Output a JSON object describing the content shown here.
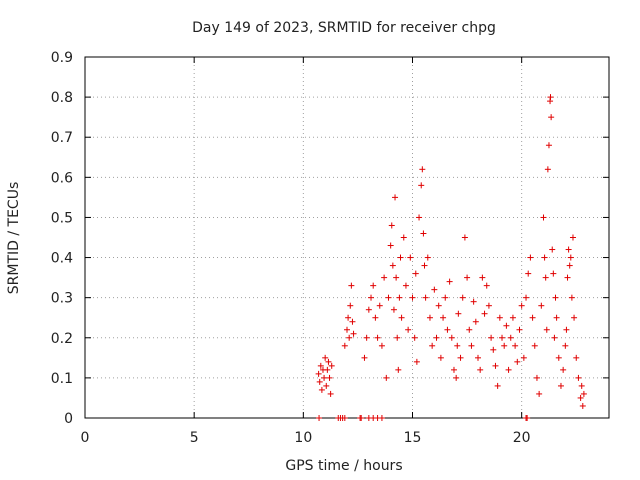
{
  "chart_data": {
    "type": "scatter",
    "title": "Day 149 of 2023, SRMTID for receiver chpg",
    "xlabel": "GPS time / hours",
    "ylabel": "SRMTID / TECUs",
    "xlim": [
      0,
      24
    ],
    "ylim": [
      0,
      0.9
    ],
    "xticks": [
      0,
      5,
      10,
      15,
      20
    ],
    "yticks": [
      0,
      0.1,
      0.2,
      0.3,
      0.4,
      0.5,
      0.6,
      0.7,
      0.8,
      0.9
    ],
    "xtick_labels": [
      "0",
      "5",
      "10",
      "15",
      "20"
    ],
    "ytick_labels": [
      "0",
      "0.1",
      "0.2",
      "0.3",
      "0.4",
      "0.5",
      "0.6",
      "0.7",
      "0.8",
      "0.9"
    ],
    "grid": true,
    "marker": "+",
    "color": "#e00000",
    "series": [
      {
        "name": "SRMTID",
        "points": [
          [
            10.7,
            0.11
          ],
          [
            10.75,
            0.09
          ],
          [
            10.8,
            0.13
          ],
          [
            10.85,
            0.07
          ],
          [
            10.9,
            0.12
          ],
          [
            10.95,
            0.1
          ],
          [
            11.0,
            0.15
          ],
          [
            11.05,
            0.08
          ],
          [
            11.1,
            0.12
          ],
          [
            11.15,
            0.14
          ],
          [
            11.2,
            0.1
          ],
          [
            11.25,
            0.06
          ],
          [
            11.3,
            0.13
          ],
          [
            11.9,
            0.18
          ],
          [
            12.0,
            0.22
          ],
          [
            12.05,
            0.25
          ],
          [
            12.1,
            0.2
          ],
          [
            12.15,
            0.28
          ],
          [
            12.2,
            0.33
          ],
          [
            12.25,
            0.24
          ],
          [
            12.3,
            0.21
          ],
          [
            12.8,
            0.15
          ],
          [
            12.9,
            0.2
          ],
          [
            13.0,
            0.27
          ],
          [
            13.1,
            0.3
          ],
          [
            13.2,
            0.33
          ],
          [
            13.3,
            0.25
          ],
          [
            13.4,
            0.2
          ],
          [
            13.5,
            0.28
          ],
          [
            13.6,
            0.18
          ],
          [
            13.7,
            0.35
          ],
          [
            13.8,
            0.1
          ],
          [
            13.9,
            0.3
          ],
          [
            14.0,
            0.43
          ],
          [
            14.05,
            0.48
          ],
          [
            14.1,
            0.38
          ],
          [
            14.15,
            0.27
          ],
          [
            14.2,
            0.55
          ],
          [
            14.25,
            0.35
          ],
          [
            14.3,
            0.2
          ],
          [
            14.35,
            0.12
          ],
          [
            14.4,
            0.3
          ],
          [
            14.45,
            0.4
          ],
          [
            14.5,
            0.25
          ],
          [
            14.6,
            0.45
          ],
          [
            14.7,
            0.33
          ],
          [
            14.8,
            0.22
          ],
          [
            14.9,
            0.4
          ],
          [
            15.0,
            0.3
          ],
          [
            15.1,
            0.2
          ],
          [
            15.15,
            0.36
          ],
          [
            15.2,
            0.14
          ],
          [
            15.3,
            0.5
          ],
          [
            15.4,
            0.58
          ],
          [
            15.45,
            0.62
          ],
          [
            15.5,
            0.46
          ],
          [
            15.55,
            0.38
          ],
          [
            15.6,
            0.3
          ],
          [
            15.7,
            0.4
          ],
          [
            15.8,
            0.25
          ],
          [
            15.9,
            0.18
          ],
          [
            16.0,
            0.32
          ],
          [
            16.1,
            0.2
          ],
          [
            16.2,
            0.28
          ],
          [
            16.3,
            0.15
          ],
          [
            16.4,
            0.25
          ],
          [
            16.5,
            0.3
          ],
          [
            16.6,
            0.22
          ],
          [
            16.7,
            0.34
          ],
          [
            16.8,
            0.2
          ],
          [
            16.9,
            0.12
          ],
          [
            17.0,
            0.1
          ],
          [
            17.05,
            0.18
          ],
          [
            17.1,
            0.26
          ],
          [
            17.2,
            0.15
          ],
          [
            17.3,
            0.3
          ],
          [
            17.4,
            0.45
          ],
          [
            17.5,
            0.35
          ],
          [
            17.6,
            0.22
          ],
          [
            17.7,
            0.18
          ],
          [
            17.8,
            0.29
          ],
          [
            17.9,
            0.24
          ],
          [
            18.0,
            0.15
          ],
          [
            18.1,
            0.12
          ],
          [
            18.2,
            0.35
          ],
          [
            18.3,
            0.26
          ],
          [
            18.4,
            0.33
          ],
          [
            18.5,
            0.28
          ],
          [
            18.6,
            0.2
          ],
          [
            18.7,
            0.17
          ],
          [
            18.8,
            0.13
          ],
          [
            18.9,
            0.08
          ],
          [
            19.0,
            0.25
          ],
          [
            19.1,
            0.2
          ],
          [
            19.2,
            0.18
          ],
          [
            19.3,
            0.23
          ],
          [
            19.4,
            0.12
          ],
          [
            19.5,
            0.2
          ],
          [
            19.6,
            0.25
          ],
          [
            19.7,
            0.18
          ],
          [
            19.8,
            0.14
          ],
          [
            19.9,
            0.22
          ],
          [
            20.0,
            0.28
          ],
          [
            20.1,
            0.15
          ],
          [
            20.2,
            0.3
          ],
          [
            20.3,
            0.36
          ],
          [
            20.4,
            0.4
          ],
          [
            20.5,
            0.25
          ],
          [
            20.6,
            0.18
          ],
          [
            20.7,
            0.1
          ],
          [
            20.8,
            0.06
          ],
          [
            20.9,
            0.28
          ],
          [
            21.0,
            0.5
          ],
          [
            21.05,
            0.4
          ],
          [
            21.1,
            0.35
          ],
          [
            21.15,
            0.22
          ],
          [
            21.2,
            0.62
          ],
          [
            21.25,
            0.68
          ],
          [
            21.3,
            0.79
          ],
          [
            21.32,
            0.8
          ],
          [
            21.35,
            0.75
          ],
          [
            21.4,
            0.42
          ],
          [
            21.45,
            0.36
          ],
          [
            21.5,
            0.2
          ],
          [
            21.55,
            0.3
          ],
          [
            21.6,
            0.25
          ],
          [
            21.7,
            0.15
          ],
          [
            21.8,
            0.08
          ],
          [
            21.9,
            0.12
          ],
          [
            22.0,
            0.18
          ],
          [
            22.05,
            0.22
          ],
          [
            22.1,
            0.35
          ],
          [
            22.15,
            0.42
          ],
          [
            22.2,
            0.38
          ],
          [
            22.25,
            0.4
          ],
          [
            22.3,
            0.3
          ],
          [
            22.35,
            0.45
          ],
          [
            22.4,
            0.25
          ],
          [
            22.5,
            0.15
          ],
          [
            22.6,
            0.1
          ],
          [
            22.7,
            0.05
          ],
          [
            22.75,
            0.08
          ],
          [
            22.8,
            0.03
          ],
          [
            22.85,
            0.06
          ],
          [
            10.72,
            0.0
          ],
          [
            11.6,
            0.0
          ],
          [
            11.7,
            0.0
          ],
          [
            11.8,
            0.0
          ],
          [
            11.9,
            0.0
          ],
          [
            12.6,
            0.0
          ],
          [
            12.65,
            0.0
          ],
          [
            13.0,
            0.0
          ],
          [
            13.2,
            0.0
          ],
          [
            13.4,
            0.0
          ],
          [
            13.6,
            0.0
          ],
          [
            20.2,
            0.0
          ],
          [
            20.25,
            0.0
          ]
        ]
      }
    ]
  }
}
